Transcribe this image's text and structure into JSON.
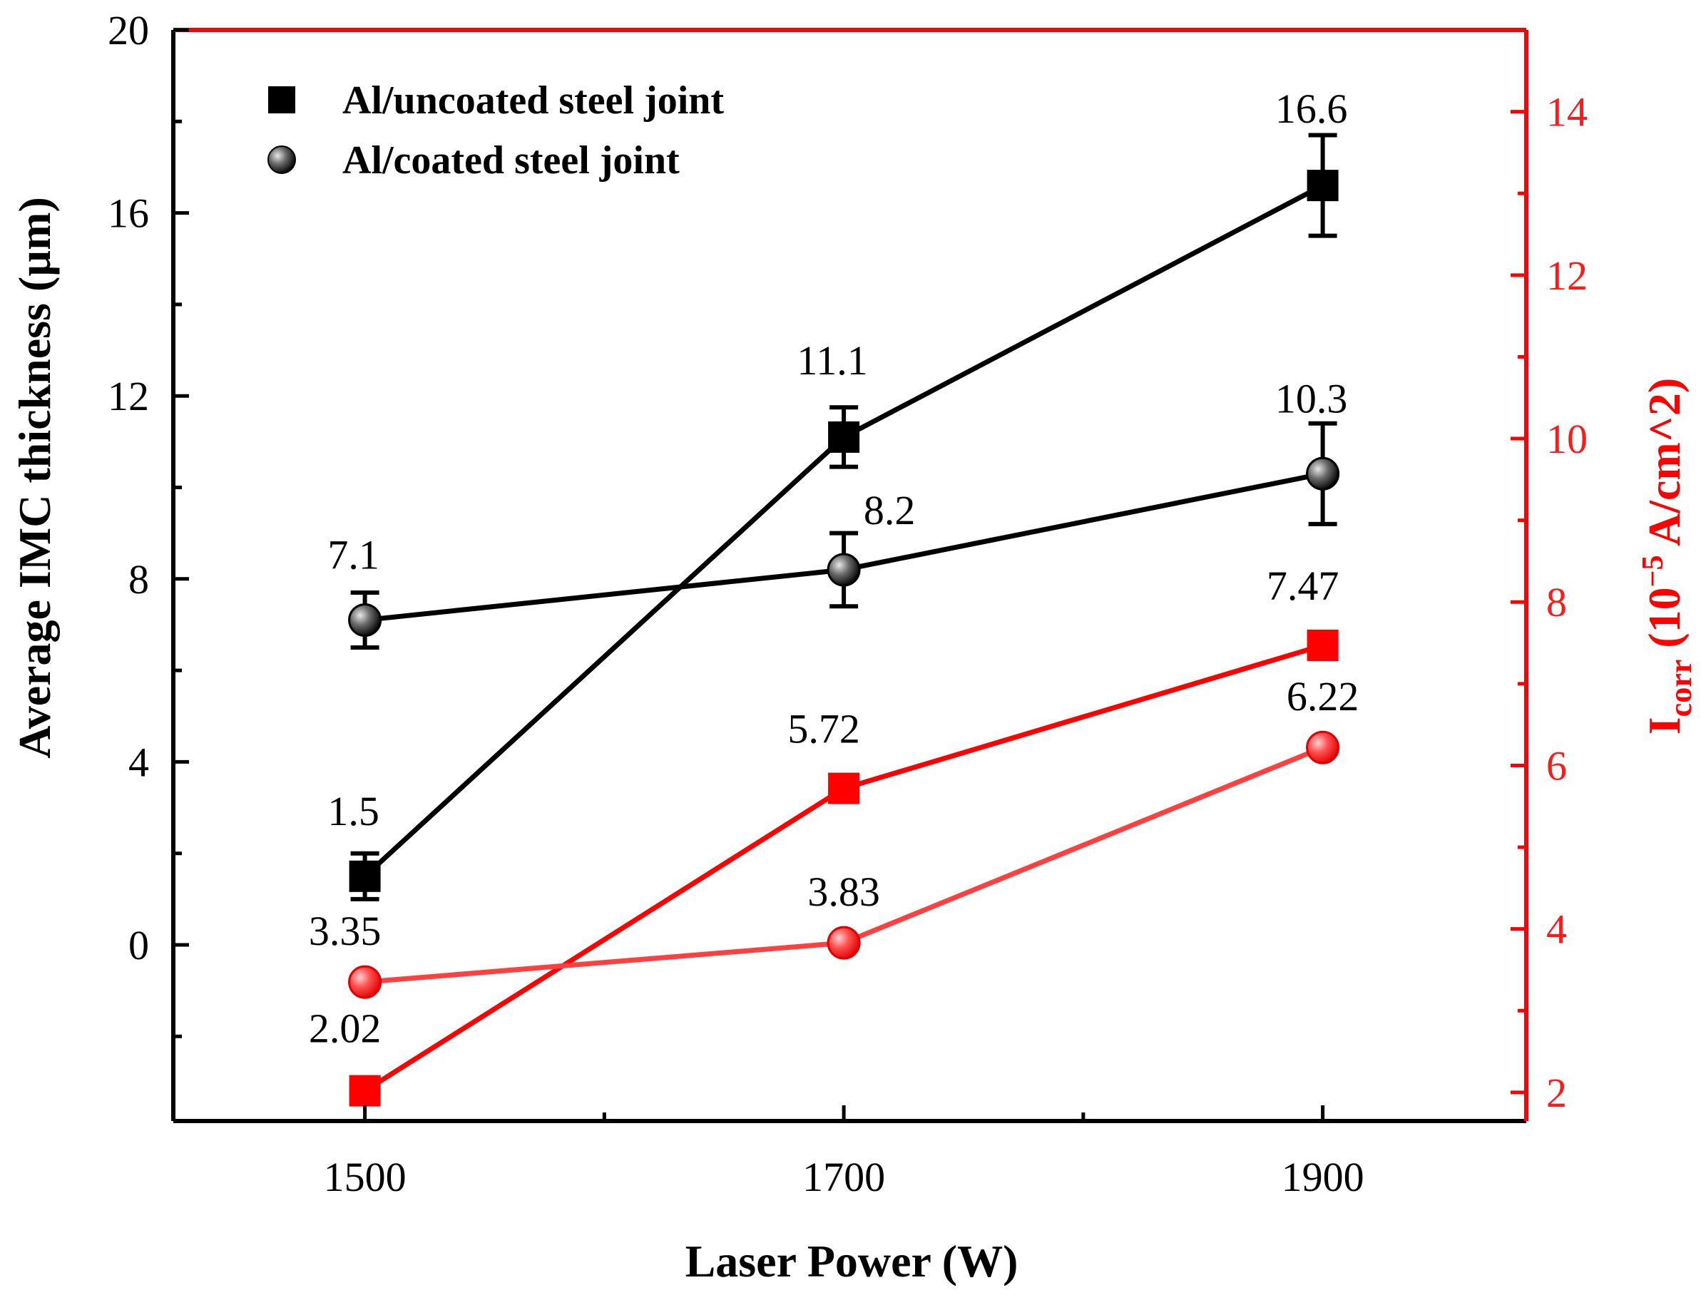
{
  "chart_data": {
    "type": "line",
    "x": [
      1500,
      1700,
      1900
    ],
    "xlabel": "Laser Power (W)",
    "ylabel": "Average IMC thickness (µm)",
    "y2label": {
      "base": "I",
      "sub": "corr",
      "unit_pre": " (10",
      "sup": "−5",
      "unit_post": " A/cm^2)"
    },
    "xlim": [
      1420,
      1985
    ],
    "ylim": [
      -3.85,
      20
    ],
    "y2lim": [
      1.65,
      15
    ],
    "xticks": [
      "1500",
      "1700",
      "1900"
    ],
    "yticks": [
      "0",
      "4",
      "8",
      "12",
      "16",
      "20"
    ],
    "y2ticks": [
      "2",
      "4",
      "6",
      "8",
      "10",
      "12",
      "14"
    ],
    "legend": [
      {
        "marker": "square",
        "label": "Al/uncoated steel joint"
      },
      {
        "marker": "sphere",
        "label": "Al/coated steel joint"
      }
    ],
    "series": [
      {
        "name": "Al/uncoated steel joint IMC",
        "axis": "left",
        "color": "#000000",
        "marker": "square",
        "values": [
          1.5,
          11.1,
          16.6
        ],
        "errors": [
          0.5,
          0.65,
          1.1
        ],
        "labels": [
          "1.5",
          "11.1",
          "16.6"
        ]
      },
      {
        "name": "Al/coated steel joint IMC",
        "axis": "left",
        "color": "#000000",
        "marker": "sphere",
        "values": [
          7.1,
          8.2,
          10.3
        ],
        "errors": [
          0.6,
          0.8,
          1.1
        ],
        "labels": [
          "7.1",
          "8.2",
          "10.3"
        ]
      },
      {
        "name": "Al/uncoated steel joint Icorr",
        "axis": "right",
        "color": "#ff0000",
        "marker": "square",
        "values": [
          2.02,
          5.72,
          7.47
        ],
        "labels": [
          "2.02",
          "5.72",
          "7.47"
        ]
      },
      {
        "name": "Al/coated steel joint Icorr",
        "axis": "right",
        "color": "#ff4040",
        "marker": "sphere",
        "values": [
          3.35,
          3.83,
          6.22
        ],
        "labels": [
          "3.35",
          "3.83",
          "6.22"
        ]
      }
    ]
  }
}
